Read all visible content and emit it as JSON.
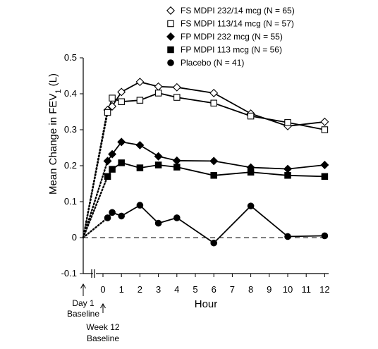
{
  "chart_data": {
    "type": "line",
    "xlabel": "Hour",
    "ylabel": "Mean Change in FEV",
    "ylabel_subscript": "1",
    "ylabel_unit": "(L)",
    "ylim": [
      -0.1,
      0.5
    ],
    "y_ticks": [
      "-0.1",
      "0",
      "0.1",
      "0.2",
      "0.3",
      "0.4",
      "0.5"
    ],
    "x_ticks": [
      "0",
      "1",
      "2",
      "3",
      "4",
      "5",
      "6",
      "7",
      "8",
      "9",
      "10",
      "11",
      "12"
    ],
    "grid": false,
    "legend_position": "top-right",
    "baseline_labels": {
      "day1_line1": "Day 1",
      "day1_line2": "Baseline",
      "week12_line1": "Week 12",
      "week12_line2": "Baseline"
    },
    "series": [
      {
        "name": "FS MDPI 232/14 mcg (N = 65)",
        "marker": "diamond-open",
        "x": [
          0.25,
          0.5,
          1,
          2,
          3,
          4,
          6,
          8,
          10,
          12
        ],
        "y": [
          0.355,
          0.365,
          0.405,
          0.433,
          0.42,
          0.418,
          0.402,
          0.345,
          0.31,
          0.322
        ]
      },
      {
        "name": "FS MDPI 113/14 mcg (N = 57)",
        "marker": "square-open",
        "x": [
          0.25,
          0.5,
          1,
          2,
          3,
          4,
          6,
          8,
          10,
          12
        ],
        "y": [
          0.348,
          0.388,
          0.378,
          0.382,
          0.402,
          0.39,
          0.374,
          0.338,
          0.32,
          0.3
        ]
      },
      {
        "name": "FP MDPI 232 mcg (N = 55)",
        "marker": "diamond-filled",
        "x": [
          0.25,
          0.5,
          1,
          2,
          3,
          4,
          6,
          8,
          10,
          12
        ],
        "y": [
          0.213,
          0.232,
          0.266,
          0.257,
          0.226,
          0.214,
          0.213,
          0.195,
          0.191,
          0.202
        ]
      },
      {
        "name": "FP MDPI 113 mcg (N = 56)",
        "marker": "square-filled",
        "x": [
          0.25,
          0.5,
          1,
          2,
          3,
          4,
          6,
          8,
          10,
          12
        ],
        "y": [
          0.17,
          0.19,
          0.208,
          0.194,
          0.202,
          0.196,
          0.173,
          0.182,
          0.173,
          0.17
        ]
      },
      {
        "name": "Placebo (N = 41)",
        "marker": "circle-filled",
        "x": [
          0.25,
          0.5,
          1,
          2,
          3,
          4,
          6,
          8,
          10,
          12
        ],
        "y": [
          0.055,
          0.07,
          0.06,
          0.09,
          0.04,
          0.055,
          -0.015,
          0.088,
          0.003,
          0.005
        ]
      }
    ]
  }
}
